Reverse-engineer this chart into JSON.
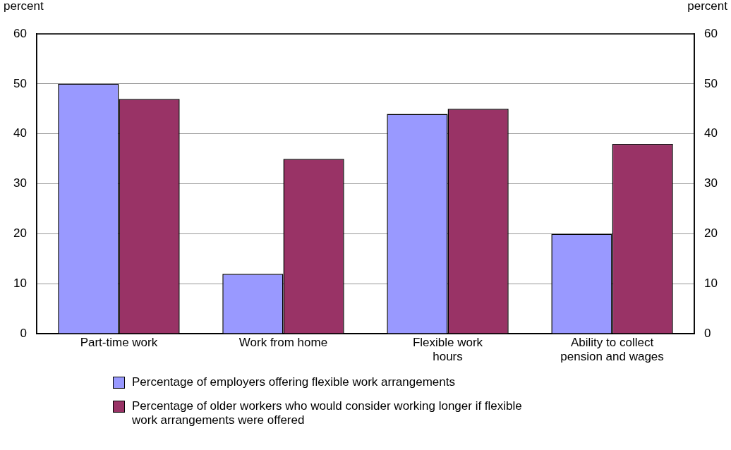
{
  "chart_data": {
    "type": "bar",
    "categories": [
      "Part-time work",
      "Work from home",
      "Flexible work hours",
      "Ability to collect pension and wages"
    ],
    "series": [
      {
        "name": "Percentage of employers offering flexible work arrangements",
        "color": "#9999ff",
        "values": [
          50,
          12,
          44,
          20
        ]
      },
      {
        "name": "Percentage of older workers who would consider working longer if flexible work arrangements were offered",
        "color": "#993366",
        "values": [
          47,
          35,
          45,
          38
        ]
      }
    ],
    "ylabel": "percent",
    "y2label": "percent",
    "ylim": [
      0,
      60
    ],
    "yticks": [
      0,
      10,
      20,
      30,
      40,
      50,
      60
    ],
    "y2lim": [
      0,
      60
    ],
    "y2ticks": [
      0,
      10,
      20,
      30,
      40,
      50,
      60
    ],
    "grid": "y",
    "legend": "bottom"
  }
}
